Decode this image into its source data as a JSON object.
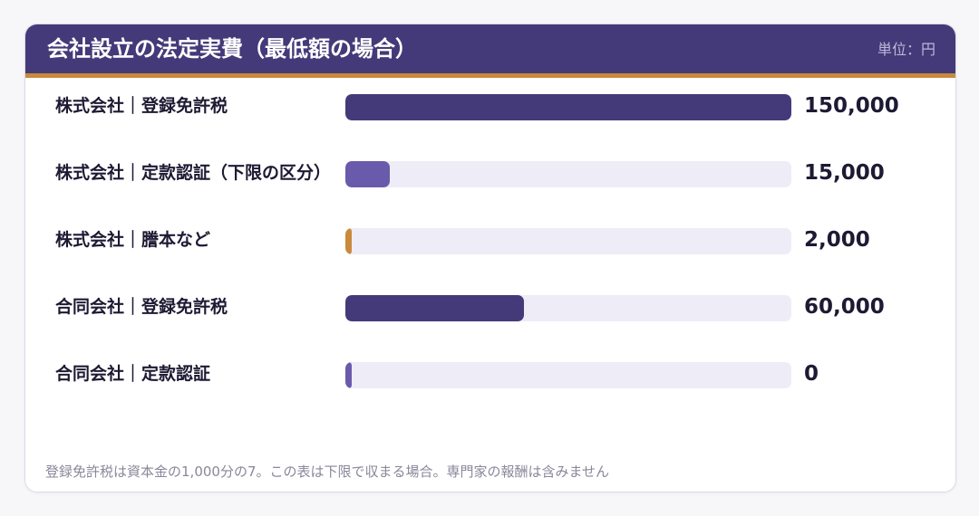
{
  "title": "会社設立の法定実費（最低額の場合）",
  "unit_label": "単位：円",
  "footnote": "登録免許税は資本金の1,000分の7。この表は下限で収まる場合。専門家の報酬は含みません",
  "colors": {
    "header_bg": "#443a79",
    "header_accent": "#c98a3c",
    "bar_dark": "#443a79",
    "bar_medium": "#6a5aab",
    "bar_orange": "#c98a3c",
    "track": "#eeecf6"
  },
  "chart_data": {
    "type": "bar",
    "orientation": "horizontal",
    "max_value": 150000,
    "rows": [
      {
        "label": "株式会社｜登録免許税",
        "value": 150000,
        "value_label": "150,000",
        "color": "#443a79"
      },
      {
        "label": "株式会社｜定款認証（下限の区分）",
        "value": 15000,
        "value_label": "15,000",
        "color": "#6a5aab"
      },
      {
        "label": "株式会社｜謄本など",
        "value": 2000,
        "value_label": "2,000",
        "color": "#c98a3c"
      },
      {
        "label": "合同会社｜登録免許税",
        "value": 60000,
        "value_label": "60,000",
        "color": "#443a79"
      },
      {
        "label": "合同会社｜定款認証",
        "value": 0,
        "value_label": "0",
        "color": "#6a5aab"
      }
    ]
  }
}
